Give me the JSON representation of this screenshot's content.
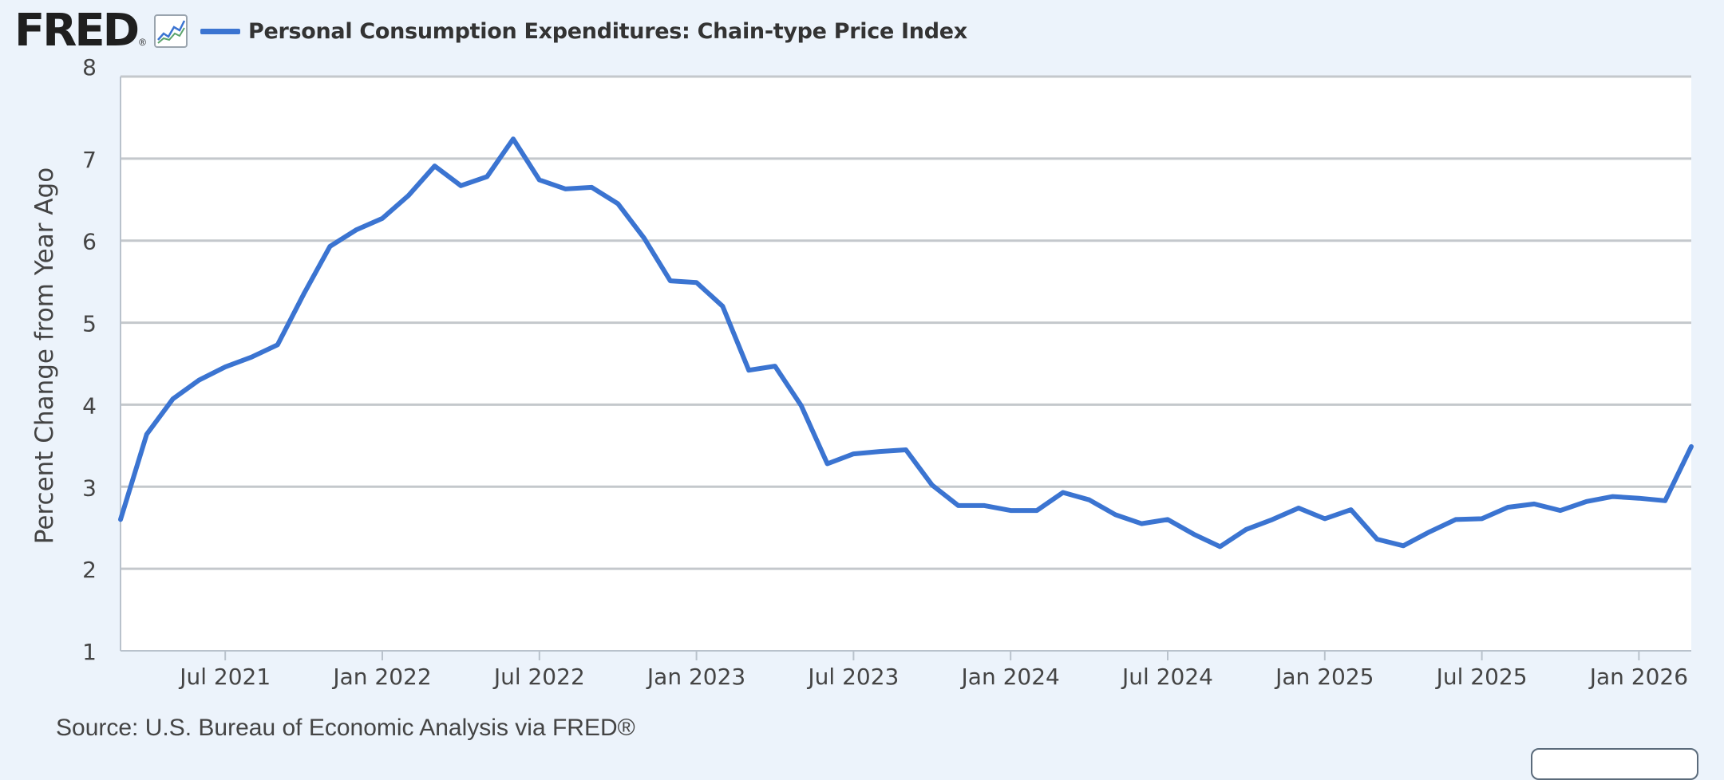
{
  "header": {
    "logo_text": "FRED",
    "logo_reg": "®",
    "graph_icon": "line-chart-icon",
    "legend_label": "Personal Consumption Expenditures: Chain-type Price Index",
    "legend_color": "#3b74d1"
  },
  "chart_data": {
    "type": "line",
    "ylabel": "Percent Change from Year Ago",
    "ylim": [
      1,
      8
    ],
    "yticks": [
      1,
      2,
      3,
      4,
      5,
      6,
      7,
      8
    ],
    "grid": true,
    "x_start": "2021-03",
    "x_end": "2026-03",
    "xticks": [
      {
        "date": "2021-07",
        "label": "Jul 2021"
      },
      {
        "date": "2022-01",
        "label": "Jan 2022"
      },
      {
        "date": "2022-07",
        "label": "Jul 2022"
      },
      {
        "date": "2023-01",
        "label": "Jan 2023"
      },
      {
        "date": "2023-07",
        "label": "Jul 2023"
      },
      {
        "date": "2024-01",
        "label": "Jan 2024"
      },
      {
        "date": "2024-07",
        "label": "Jul 2024"
      },
      {
        "date": "2025-01",
        "label": "Jan 2025"
      },
      {
        "date": "2025-07",
        "label": "Jul 2025"
      },
      {
        "date": "2026-01",
        "label": "Jan 2026"
      }
    ],
    "series": [
      {
        "color": "#3b74d1",
        "points": [
          [
            "2021-03",
            2.6
          ],
          [
            "2021-04",
            3.64
          ],
          [
            "2021-05",
            4.07
          ],
          [
            "2021-06",
            4.3
          ],
          [
            "2021-07",
            4.46
          ],
          [
            "2021-08",
            4.58
          ],
          [
            "2021-09",
            4.73
          ],
          [
            "2021-10",
            5.35
          ],
          [
            "2021-11",
            5.93
          ],
          [
            "2021-12",
            6.13
          ],
          [
            "2022-01",
            6.27
          ],
          [
            "2022-02",
            6.55
          ],
          [
            "2022-03",
            6.91
          ],
          [
            "2022-04",
            6.67
          ],
          [
            "2022-05",
            6.78
          ],
          [
            "2022-06",
            7.24
          ],
          [
            "2022-07",
            6.74
          ],
          [
            "2022-08",
            6.63
          ],
          [
            "2022-09",
            6.65
          ],
          [
            "2022-10",
            6.45
          ],
          [
            "2022-11",
            6.03
          ],
          [
            "2022-12",
            5.51
          ],
          [
            "2023-01",
            5.49
          ],
          [
            "2023-02",
            5.2
          ],
          [
            "2023-03",
            4.42
          ],
          [
            "2023-04",
            4.47
          ],
          [
            "2023-05",
            3.99
          ],
          [
            "2023-06",
            3.28
          ],
          [
            "2023-07",
            3.4
          ],
          [
            "2023-08",
            3.43
          ],
          [
            "2023-09",
            3.45
          ],
          [
            "2023-10",
            3.02
          ],
          [
            "2023-11",
            2.77
          ],
          [
            "2023-12",
            2.77
          ],
          [
            "2024-01",
            2.71
          ],
          [
            "2024-02",
            2.71
          ],
          [
            "2024-03",
            2.93
          ],
          [
            "2024-04",
            2.84
          ],
          [
            "2024-05",
            2.66
          ],
          [
            "2024-06",
            2.55
          ],
          [
            "2024-07",
            2.6
          ],
          [
            "2024-08",
            2.42
          ],
          [
            "2024-09",
            2.27
          ],
          [
            "2024-10",
            2.48
          ],
          [
            "2024-11",
            2.6
          ],
          [
            "2024-12",
            2.74
          ],
          [
            "2025-01",
            2.61
          ],
          [
            "2025-02",
            2.72
          ],
          [
            "2025-03",
            2.36
          ],
          [
            "2025-04",
            2.28
          ],
          [
            "2025-05",
            2.45
          ],
          [
            "2025-06",
            2.6
          ],
          [
            "2025-07",
            2.61
          ],
          [
            "2025-08",
            2.75
          ],
          [
            "2025-09",
            2.79
          ],
          [
            "2025-10",
            2.71
          ],
          [
            "2025-11",
            2.82
          ],
          [
            "2025-12",
            2.88
          ],
          [
            "2026-01",
            2.86
          ],
          [
            "2026-02",
            2.83
          ],
          [
            "2026-03",
            3.49
          ]
        ]
      }
    ]
  },
  "footer": {
    "source": "Source: U.S. Bureau of Economic Analysis via FRED®"
  }
}
